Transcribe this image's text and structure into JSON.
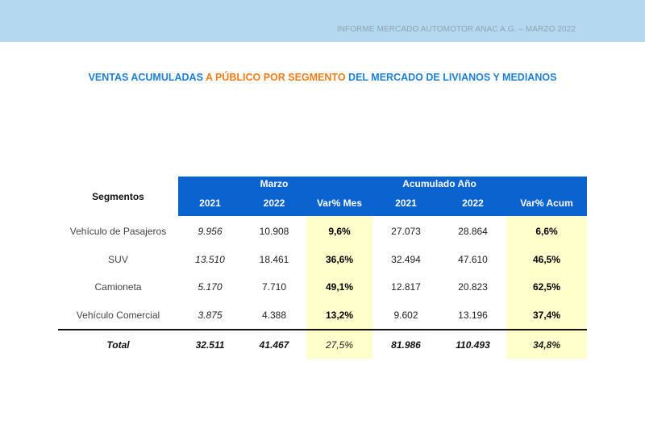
{
  "header": {
    "text": "INFORME MERCADO AUTOMOTOR ANAC A.G. – MARZO 2022"
  },
  "title": {
    "part1": "VENTAS ACUMULADAS ",
    "part2": "A PÚBLICO POR SEGMENTO",
    "part3": " DEL MERCADO DE LIVIANOS Y MEDIANOS"
  },
  "colors": {
    "header_band": "#b3d8ef",
    "table_header": "#0a63cf",
    "highlight": "#ffffcc",
    "title_blue": "#1f7ed6",
    "title_orange": "#f07d1a"
  },
  "table": {
    "segment_header": "Segmentos",
    "groups": [
      "Marzo",
      "Acumulado Año"
    ],
    "columns": [
      "2021",
      "2022",
      "Var% Mes",
      "2021",
      "2022",
      "Var% Acum"
    ],
    "rows": [
      {
        "segment": "Vehículo de Pasajeros",
        "values": [
          "9.956",
          "10.908",
          "9,6%",
          "27.073",
          "28.864",
          "6,6%"
        ]
      },
      {
        "segment": "SUV",
        "values": [
          "13.510",
          "18.461",
          "36,6%",
          "32.494",
          "47.610",
          "46,5%"
        ]
      },
      {
        "segment": "Camioneta",
        "values": [
          "5.170",
          "7.710",
          "49,1%",
          "12.817",
          "20.823",
          "62,5%"
        ]
      },
      {
        "segment": "Vehículo Comercial",
        "values": [
          "3.875",
          "4.388",
          "13,2%",
          "9.602",
          "13.196",
          "37,4%"
        ]
      }
    ],
    "total": {
      "segment": "Total",
      "values": [
        "32.511",
        "41.467",
        "27,5%",
        "81.986",
        "110.493",
        "34,8%"
      ]
    }
  }
}
